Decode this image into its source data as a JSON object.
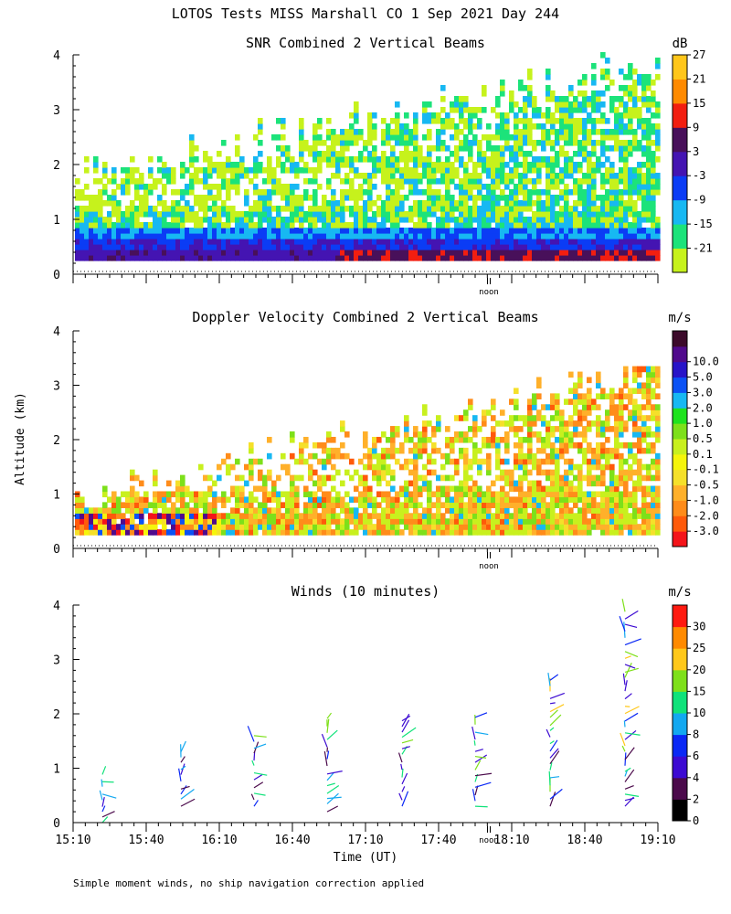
{
  "title": "LOTOS Tests MISS Marshall CO   1 Sep 2021 Day 244",
  "ylabel": "Altitude (km)",
  "xlabel": "Time (UT)",
  "footnote": "Simple moment winds, no ship navigation correction applied",
  "noon_label": "noon",
  "chart_data": [
    {
      "type": "heatmap",
      "title": "SNR Combined 2 Vertical Beams",
      "units": "dB",
      "ylim": [
        0,
        4
      ],
      "yticks": [
        "0",
        "1",
        "2",
        "3",
        "4"
      ],
      "colorbar": {
        "colors": [
          "#c6f21c",
          "#1ce37a",
          "#17b8f2",
          "#0b3cf5",
          "#4414b2",
          "#48105a",
          "#f21e10",
          "#ff8a00",
          "#ffc61a"
        ],
        "labels": [
          "-21",
          "-15",
          "-9",
          "-3",
          "3",
          "9",
          "15",
          "21",
          "27"
        ]
      }
    },
    {
      "type": "heatmap",
      "title": "Doppler Velocity Combined 2 Vertical Beams",
      "units": "m/s",
      "ylim": [
        0,
        4
      ],
      "yticks": [
        "0",
        "1",
        "2",
        "3",
        "4"
      ],
      "colorbar": {
        "colors": [
          "#f4141a",
          "#ff5a0a",
          "#ff8c1a",
          "#ffb02a",
          "#f5e02a",
          "#f5f50a",
          "#c8f01e",
          "#7de01a",
          "#1ee31e",
          "#17b8f2",
          "#0b52f5",
          "#2814c8",
          "#500a8c",
          "#3c0a2a"
        ],
        "labels": [
          "-3.0",
          "-2.0",
          "-1.0",
          "-0.5",
          "-0.1",
          "0.1",
          "0.5",
          "1.0",
          "2.0",
          "3.0",
          "5.0",
          "10.0"
        ]
      }
    },
    {
      "type": "scatter",
      "title": "Winds (10 minutes)",
      "units": "m/s",
      "ylim": [
        0,
        4
      ],
      "yticks": [
        "0",
        "1",
        "2",
        "3",
        "4"
      ],
      "xticks": [
        "15:10",
        "15:40",
        "16:10",
        "16:40",
        "17:10",
        "17:40",
        "18:10",
        "18:40",
        "19:10"
      ],
      "colorbar": {
        "colors": [
          "#000000",
          "#4b0a4b",
          "#3c0ad2",
          "#0a28f5",
          "#12a8f0",
          "#10e27a",
          "#7ee01a",
          "#ffc81a",
          "#ff8a00",
          "#ff1a10"
        ],
        "labels": [
          "0",
          "2",
          "4",
          "6",
          "8",
          "10",
          "15",
          "20",
          "25",
          "30"
        ]
      },
      "wind_times": [
        "15:25",
        "15:50",
        "16:20",
        "16:50",
        "17:20",
        "17:50",
        "18:20",
        "18:50"
      ]
    }
  ]
}
